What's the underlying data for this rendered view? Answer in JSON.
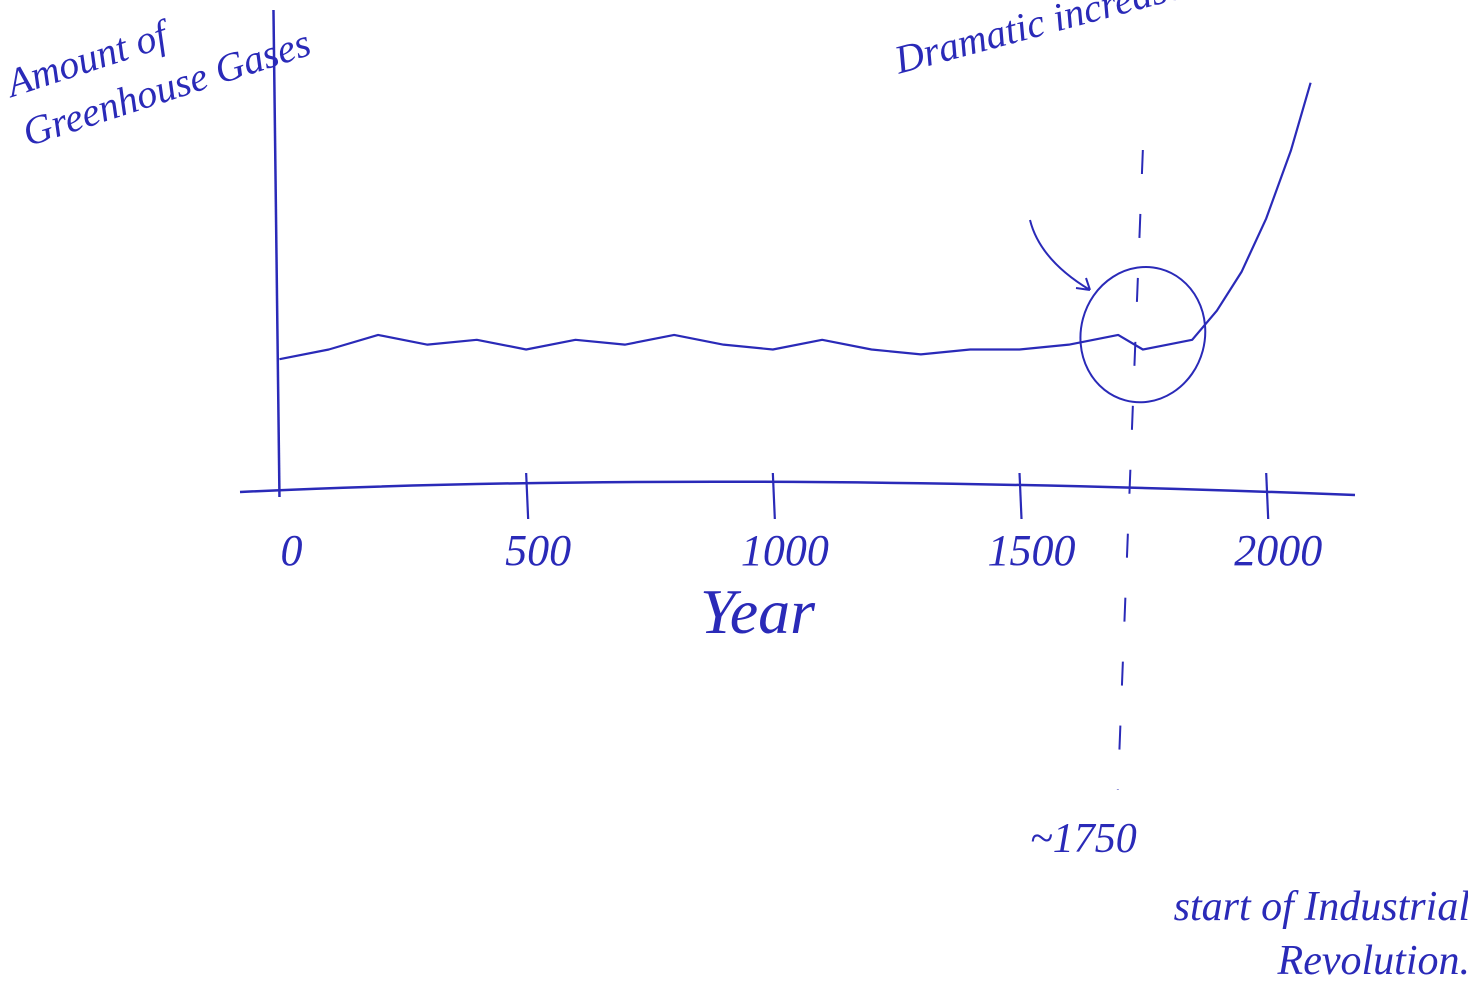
{
  "chart_data": {
    "type": "line",
    "y_label": "Amount of Greenhouse Gases",
    "x_label": "Year",
    "annotation": "Dramatic increase",
    "marker": {
      "value": 1750,
      "label": "~1750",
      "note": "start of Industrial Revolution."
    },
    "x": [
      0,
      100,
      200,
      300,
      400,
      500,
      600,
      700,
      800,
      900,
      1000,
      1100,
      1200,
      1300,
      1400,
      1500,
      1600,
      1700,
      1750,
      1800,
      1850,
      1900,
      1950,
      2000,
      2050,
      2090
    ],
    "values": [
      2.8,
      3.0,
      3.3,
      3.1,
      3.2,
      3.0,
      3.2,
      3.1,
      3.3,
      3.1,
      3.0,
      3.2,
      3.0,
      2.9,
      3.0,
      3.0,
      3.1,
      3.3,
      3.0,
      3.1,
      3.2,
      3.8,
      4.6,
      5.7,
      7.1,
      8.5
    ],
    "color": "#2a2ab8",
    "xlim": [
      -80,
      2180
    ],
    "ylim": [
      0,
      10
    ],
    "xticks": [
      0,
      500,
      1000,
      1500,
      2000
    ],
    "grid": false
  }
}
